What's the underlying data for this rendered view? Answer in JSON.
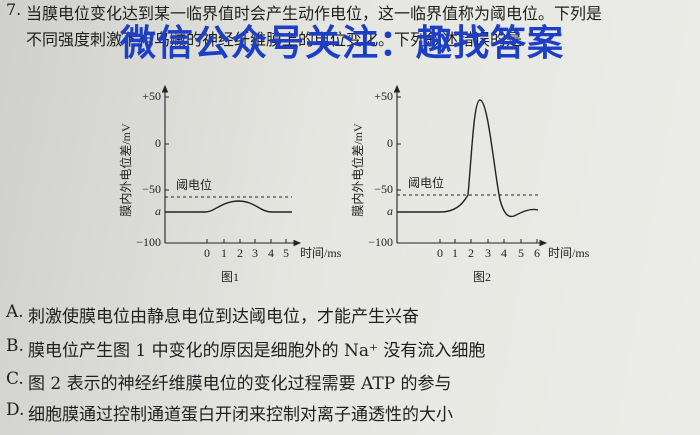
{
  "question": {
    "number": "7.",
    "lines": [
      "当膜电位变化达到某一临界值时会产生动作电位，这一临界值称为阈电位。下列是",
      "不同强度刺激下枪乌贼的神经纤维膜上的电位变化。下列叙述错误的是"
    ]
  },
  "watermark": "微信公众号关注：趣找答案",
  "figures": [
    {
      "caption": "图1",
      "y_label": "膜内外电位差/mV",
      "y_ticks": [
        "+50",
        "0",
        "−50",
        "a",
        "−100"
      ],
      "threshold_label": "阈电位",
      "x_ticks": [
        "0",
        "1",
        "2",
        "3",
        "4",
        "5"
      ],
      "x_label": "时间/ms"
    },
    {
      "caption": "图2",
      "y_label": "膜内外电位差/mV",
      "y_ticks": [
        "+50",
        "0",
        "−50",
        "a",
        "−100"
      ],
      "threshold_label": "阈电位",
      "x_ticks": [
        "0",
        "1",
        "2",
        "3",
        "4",
        "5",
        "6"
      ],
      "x_label": "时间/ms"
    }
  ],
  "options": [
    {
      "letter": "A.",
      "text": "刺激使膜电位由静息电位到达阈电位，才能产生兴奋"
    },
    {
      "letter": "B.",
      "text": "膜电位产生图 1 中变化的原因是细胞外的 Na⁺ 没有流入细胞"
    },
    {
      "letter": "C.",
      "text": "图 2 表示的神经纤维膜电位的变化过程需要 ATP 的参与"
    },
    {
      "letter": "D.",
      "text": "细胞膜通过控制通道蛋白开闭来控制对离子通透性的大小"
    }
  ]
}
